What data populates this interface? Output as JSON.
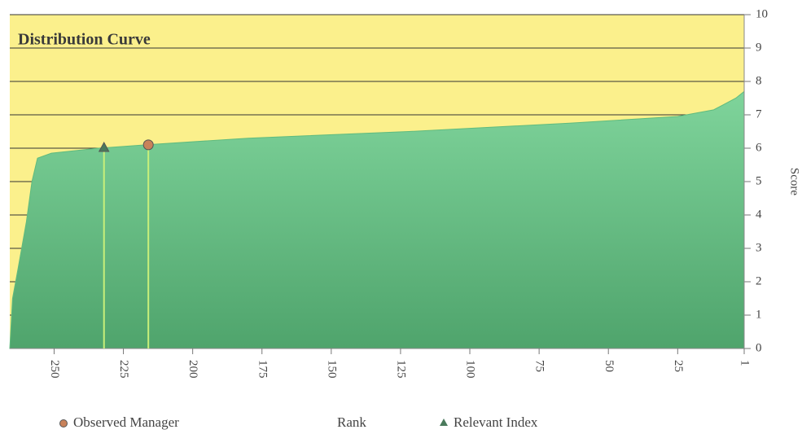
{
  "chart_data": {
    "type": "area",
    "title": "Distribution Curve",
    "x_label": "Rank",
    "y_label": "Score",
    "x": [
      266,
      265,
      263,
      260,
      258,
      256,
      251,
      234,
      217,
      180,
      122,
      64,
      25,
      12,
      4,
      1
    ],
    "values": [
      0,
      1.5,
      2.4,
      3.8,
      5.0,
      5.7,
      5.85,
      6.0,
      6.1,
      6.3,
      6.5,
      6.75,
      6.95,
      7.15,
      7.5,
      7.7
    ],
    "color": "#5fbb7e",
    "markers": [
      {
        "name": "Observed Manager",
        "shape": "circle",
        "color": "#c9825a",
        "x": [
          216
        ],
        "values": [
          6.1
        ]
      },
      {
        "name": "Relevant Index",
        "shape": "triangle",
        "color": "#4a7a5c",
        "x": [
          232
        ],
        "values": [
          6.0
        ]
      }
    ],
    "xlim": [
      266,
      1
    ],
    "xticks": [
      250,
      225,
      200,
      175,
      150,
      125,
      100,
      75,
      50,
      25,
      1
    ],
    "ylim": [
      0,
      10
    ],
    "yticks": [
      0,
      1,
      2,
      3,
      4,
      5,
      6,
      7,
      8,
      9,
      10
    ],
    "grid": true,
    "background": "#fbf08c"
  }
}
